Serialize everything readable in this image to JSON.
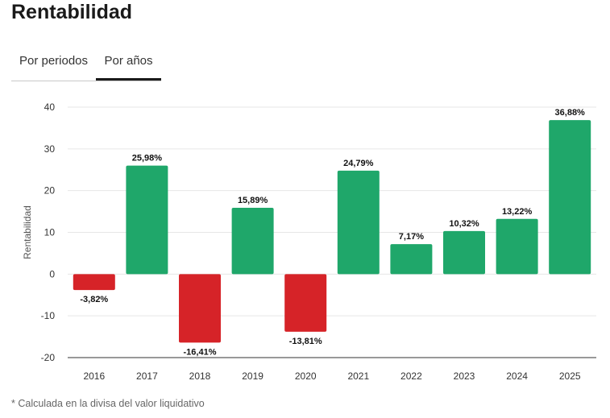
{
  "page": {
    "title": "Rentabilidad",
    "footnote": "* Calculada en la divisa del valor liquidativo"
  },
  "tabs": [
    {
      "label": "Por periodos",
      "active": false
    },
    {
      "label": "Por años",
      "active": true
    }
  ],
  "chart_data": {
    "type": "bar",
    "title": "",
    "xlabel": "",
    "ylabel": "Rentabilidad",
    "ylim": [
      -20,
      40
    ],
    "yticks": [
      -20,
      -10,
      0,
      10,
      20,
      30,
      40
    ],
    "grid": true,
    "categories": [
      "2016",
      "2017",
      "2018",
      "2019",
      "2020",
      "2021",
      "2022",
      "2023",
      "2024",
      "2025"
    ],
    "values": [
      -3.82,
      25.98,
      -16.41,
      15.89,
      -13.81,
      24.79,
      7.17,
      10.32,
      13.22,
      36.88
    ],
    "data_labels": [
      "-3,82%",
      "25,98%",
      "-16,41%",
      "15,89%",
      "-13,81%",
      "24,79%",
      "7,17%",
      "10,32%",
      "13,22%",
      "36,88%"
    ],
    "colors": {
      "positive": "#1fa76a",
      "negative": "#d62328",
      "grid": "#e6e6e6",
      "axis": "#333333"
    }
  }
}
